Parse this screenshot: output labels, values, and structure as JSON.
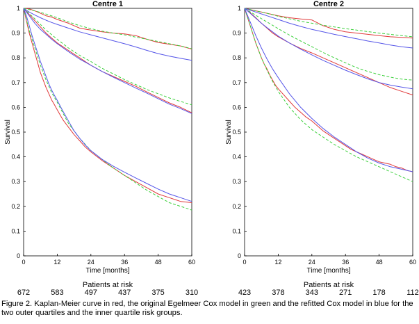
{
  "chart_data": [
    {
      "type": "line",
      "title": "Centre 1",
      "xlabel": "Time [months]",
      "ylabel": "Survival",
      "xlim": [
        0,
        60
      ],
      "ylim": [
        0,
        1
      ],
      "xticks": [
        "0",
        "12",
        "24",
        "36",
        "48",
        "60"
      ],
      "yticks": [
        "0",
        "0.1",
        "0.2",
        "0.3",
        "0.4",
        "0.5",
        "0.6",
        "0.7",
        "0.8",
        "0.9",
        "1"
      ],
      "grid": false,
      "risk_title": "Patients at risk",
      "patients_at_risk": [
        "672",
        "583",
        "497",
        "437",
        "375",
        "310"
      ],
      "series": [
        {
          "color": "#e0393a",
          "group": "top",
          "x": [
            0,
            2,
            4,
            6,
            8,
            10,
            12,
            16,
            20,
            24,
            28,
            32,
            36,
            40,
            44,
            48,
            52,
            56,
            60
          ],
          "y": [
            1,
            0.998,
            0.99,
            0.98,
            0.97,
            0.965,
            0.955,
            0.94,
            0.92,
            0.912,
            0.905,
            0.9,
            0.897,
            0.89,
            0.875,
            0.862,
            0.855,
            0.848,
            0.835
          ]
        },
        {
          "color": "#3dd13d",
          "dashed": true,
          "group": "top",
          "x": [
            0,
            4,
            8,
            12,
            16,
            20,
            24,
            28,
            32,
            36,
            40,
            44,
            48,
            52,
            56,
            60
          ],
          "y": [
            1,
            0.99,
            0.977,
            0.962,
            0.945,
            0.93,
            0.918,
            0.908,
            0.9,
            0.893,
            0.884,
            0.875,
            0.866,
            0.857,
            0.848,
            0.837
          ]
        },
        {
          "color": "#5555e8",
          "group": "top",
          "x": [
            0,
            2,
            4,
            6,
            8,
            10,
            12,
            16,
            20,
            24,
            28,
            32,
            36,
            40,
            44,
            48,
            52,
            56,
            60
          ],
          "y": [
            1,
            0.985,
            0.973,
            0.962,
            0.952,
            0.943,
            0.935,
            0.92,
            0.905,
            0.893,
            0.881,
            0.869,
            0.857,
            0.844,
            0.83,
            0.817,
            0.807,
            0.798,
            0.79
          ]
        },
        {
          "color": "#e0393a",
          "group": "middle",
          "x": [
            0,
            2,
            4,
            6,
            8,
            10,
            12,
            14,
            16,
            18,
            20,
            24,
            28,
            32,
            36,
            40,
            44,
            48,
            52,
            56,
            60
          ],
          "y": [
            1,
            0.975,
            0.95,
            0.925,
            0.9,
            0.88,
            0.86,
            0.845,
            0.83,
            0.815,
            0.8,
            0.77,
            0.745,
            0.725,
            0.705,
            0.685,
            0.662,
            0.64,
            0.618,
            0.6,
            0.578
          ]
        },
        {
          "color": "#3dd13d",
          "dashed": true,
          "group": "middle",
          "x": [
            0,
            4,
            8,
            12,
            16,
            20,
            24,
            28,
            32,
            36,
            40,
            44,
            48,
            52,
            56,
            60
          ],
          "y": [
            1,
            0.958,
            0.912,
            0.875,
            0.84,
            0.81,
            0.785,
            0.758,
            0.735,
            0.712,
            0.692,
            0.672,
            0.655,
            0.638,
            0.624,
            0.61
          ]
        },
        {
          "color": "#5555e8",
          "group": "middle",
          "x": [
            0,
            2,
            4,
            6,
            8,
            10,
            12,
            16,
            20,
            24,
            28,
            32,
            36,
            40,
            44,
            48,
            52,
            56,
            60
          ],
          "y": [
            1,
            0.97,
            0.94,
            0.915,
            0.895,
            0.875,
            0.857,
            0.825,
            0.795,
            0.77,
            0.745,
            0.722,
            0.7,
            0.678,
            0.657,
            0.635,
            0.613,
            0.595,
            0.575
          ]
        },
        {
          "color": "#e0393a",
          "group": "bottom",
          "x": [
            0,
            1,
            2,
            3,
            4,
            5,
            6,
            7,
            8,
            9,
            10,
            11,
            12,
            14,
            16,
            18,
            20,
            22,
            24,
            28,
            32,
            36,
            40,
            44,
            48,
            52,
            56,
            60
          ],
          "y": [
            1,
            0.95,
            0.9,
            0.86,
            0.82,
            0.78,
            0.74,
            0.71,
            0.68,
            0.655,
            0.63,
            0.61,
            0.59,
            0.55,
            0.52,
            0.49,
            0.465,
            0.44,
            0.42,
            0.385,
            0.355,
            0.325,
            0.3,
            0.275,
            0.25,
            0.235,
            0.22,
            0.215
          ]
        },
        {
          "color": "#3dd13d",
          "dashed": true,
          "group": "bottom",
          "x": [
            0,
            2,
            4,
            6,
            8,
            10,
            12,
            16,
            20,
            24,
            28,
            32,
            36,
            40,
            44,
            48,
            52,
            56,
            60
          ],
          "y": [
            1,
            0.91,
            0.84,
            0.77,
            0.71,
            0.66,
            0.62,
            0.535,
            0.475,
            0.425,
            0.39,
            0.355,
            0.325,
            0.295,
            0.265,
            0.24,
            0.215,
            0.2,
            0.185
          ]
        },
        {
          "color": "#5555e8",
          "group": "bottom",
          "x": [
            0,
            1,
            2,
            3,
            4,
            5,
            6,
            7,
            8,
            9,
            10,
            11,
            12,
            14,
            16,
            18,
            20,
            22,
            24,
            28,
            32,
            36,
            40,
            44,
            48,
            52,
            56,
            60
          ],
          "y": [
            1,
            0.97,
            0.93,
            0.89,
            0.855,
            0.82,
            0.785,
            0.755,
            0.725,
            0.695,
            0.67,
            0.648,
            0.628,
            0.585,
            0.545,
            0.505,
            0.475,
            0.448,
            0.425,
            0.39,
            0.362,
            0.338,
            0.315,
            0.292,
            0.27,
            0.25,
            0.235,
            0.22
          ]
        }
      ]
    },
    {
      "type": "line",
      "title": "Centre 2",
      "xlabel": "Time [months]",
      "ylabel": "Survival",
      "xlim": [
        0,
        60
      ],
      "ylim": [
        0,
        1
      ],
      "xticks": [
        "0",
        "12",
        "24",
        "36",
        "48",
        "60"
      ],
      "yticks": [
        "0",
        "0.1",
        "0.2",
        "0.3",
        "0.4",
        "0.5",
        "0.6",
        "0.7",
        "0.8",
        "0.9",
        "1"
      ],
      "grid": false,
      "risk_title": "Patients at risk",
      "patients_at_risk": [
        "423",
        "378",
        "343",
        "271",
        "178",
        "112"
      ],
      "series": [
        {
          "color": "#e0393a",
          "group": "top",
          "x": [
            0,
            2,
            4,
            6,
            8,
            12,
            16,
            20,
            24,
            28,
            32,
            36,
            40,
            44,
            48,
            52,
            56,
            60
          ],
          "y": [
            1,
            0.995,
            0.99,
            0.985,
            0.98,
            0.97,
            0.962,
            0.957,
            0.953,
            0.93,
            0.915,
            0.905,
            0.9,
            0.895,
            0.89,
            0.885,
            0.883,
            0.88
          ]
        },
        {
          "color": "#3dd13d",
          "dashed": true,
          "group": "top",
          "x": [
            0,
            4,
            8,
            12,
            16,
            20,
            24,
            28,
            32,
            36,
            40,
            44,
            48,
            52,
            56,
            60
          ],
          "y": [
            1,
            0.99,
            0.98,
            0.968,
            0.958,
            0.948,
            0.94,
            0.932,
            0.925,
            0.918,
            0.912,
            0.906,
            0.9,
            0.895,
            0.89,
            0.885
          ]
        },
        {
          "color": "#5555e8",
          "group": "top",
          "x": [
            0,
            4,
            8,
            12,
            16,
            20,
            24,
            28,
            32,
            36,
            40,
            44,
            48,
            52,
            56,
            60
          ],
          "y": [
            1,
            0.985,
            0.97,
            0.955,
            0.94,
            0.927,
            0.915,
            0.905,
            0.895,
            0.886,
            0.877,
            0.868,
            0.86,
            0.852,
            0.845,
            0.84
          ]
        },
        {
          "color": "#e0393a",
          "group": "middle",
          "x": [
            0,
            2,
            4,
            6,
            8,
            10,
            12,
            16,
            20,
            24,
            28,
            32,
            36,
            40,
            44,
            48,
            52,
            56,
            60
          ],
          "y": [
            1,
            0.982,
            0.962,
            0.94,
            0.92,
            0.9,
            0.885,
            0.86,
            0.838,
            0.82,
            0.8,
            0.78,
            0.76,
            0.74,
            0.72,
            0.7,
            0.68,
            0.665,
            0.65
          ]
        },
        {
          "color": "#3dd13d",
          "dashed": true,
          "group": "middle",
          "x": [
            0,
            4,
            8,
            12,
            16,
            20,
            24,
            28,
            32,
            36,
            40,
            44,
            48,
            52,
            56,
            60
          ],
          "y": [
            1,
            0.972,
            0.945,
            0.918,
            0.892,
            0.868,
            0.845,
            0.822,
            0.8,
            0.78,
            0.76,
            0.745,
            0.732,
            0.722,
            0.714,
            0.71
          ]
        },
        {
          "color": "#5555e8",
          "group": "middle",
          "x": [
            0,
            2,
            4,
            6,
            8,
            10,
            12,
            16,
            20,
            24,
            28,
            32,
            36,
            40,
            44,
            48,
            52,
            56,
            60
          ],
          "y": [
            1,
            0.98,
            0.96,
            0.94,
            0.922,
            0.905,
            0.888,
            0.86,
            0.835,
            0.812,
            0.79,
            0.77,
            0.75,
            0.732,
            0.715,
            0.7,
            0.69,
            0.682,
            0.675
          ]
        },
        {
          "color": "#e0393a",
          "group": "bottom",
          "x": [
            0,
            1,
            2,
            3,
            4,
            5,
            6,
            7,
            8,
            9,
            10,
            11,
            12,
            14,
            16,
            18,
            20,
            22,
            24,
            26,
            28,
            30,
            32,
            34,
            36,
            38,
            40,
            42,
            44,
            46,
            48,
            50,
            52,
            54,
            56,
            58,
            60
          ],
          "y": [
            1,
            0.965,
            0.93,
            0.895,
            0.86,
            0.83,
            0.8,
            0.775,
            0.755,
            0.73,
            0.71,
            0.69,
            0.675,
            0.65,
            0.625,
            0.6,
            0.58,
            0.56,
            0.545,
            0.525,
            0.505,
            0.49,
            0.475,
            0.46,
            0.445,
            0.43,
            0.42,
            0.41,
            0.4,
            0.39,
            0.38,
            0.375,
            0.37,
            0.36,
            0.355,
            0.345,
            0.34
          ]
        },
        {
          "color": "#3dd13d",
          "dashed": true,
          "group": "bottom",
          "x": [
            0,
            2,
            4,
            6,
            8,
            10,
            12,
            16,
            20,
            24,
            28,
            32,
            36,
            40,
            44,
            48,
            52,
            56,
            60
          ],
          "y": [
            1,
            0.93,
            0.86,
            0.8,
            0.75,
            0.705,
            0.665,
            0.6,
            0.55,
            0.51,
            0.48,
            0.45,
            0.425,
            0.4,
            0.38,
            0.36,
            0.34,
            0.32,
            0.3
          ]
        },
        {
          "color": "#5555e8",
          "group": "bottom",
          "x": [
            0,
            2,
            4,
            6,
            8,
            10,
            12,
            16,
            20,
            24,
            28,
            32,
            36,
            40,
            44,
            48,
            52,
            56,
            60
          ],
          "y": [
            1,
            0.945,
            0.89,
            0.84,
            0.795,
            0.755,
            0.72,
            0.655,
            0.6,
            0.555,
            0.515,
            0.48,
            0.45,
            0.42,
            0.395,
            0.375,
            0.36,
            0.35,
            0.34
          ]
        }
      ]
    }
  ],
  "caption": "Figure 2. Kaplan-Meier curve in red, the original Egelmeer Cox model in green and the refitted Cox model in blue for the two outer quartiles and the inner quartile risk groups."
}
